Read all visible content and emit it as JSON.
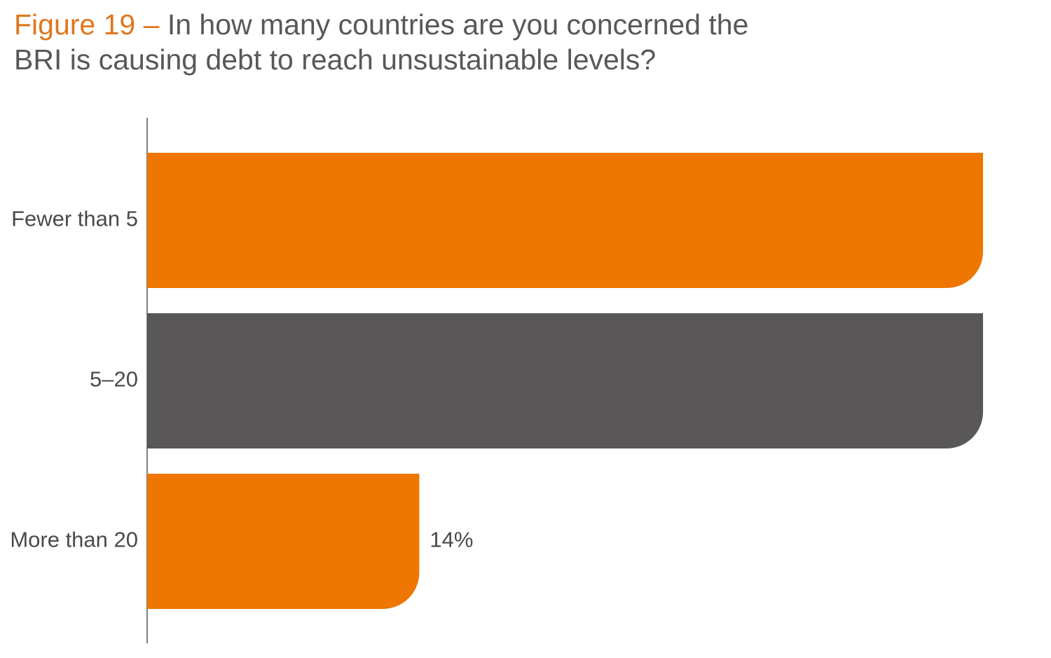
{
  "chart_data": {
    "type": "hbar",
    "figure_label": "Figure 19 –",
    "title": "In how many countries are you concerned the BRI is causing debt to reach unsustainable levels?",
    "categories": [
      "Fewer than 5",
      "5–20",
      "More than 20"
    ],
    "values": [
      43,
      43,
      14
    ],
    "value_labels": [
      null,
      null,
      "14%"
    ],
    "colors": [
      "#ee7601",
      "#595758",
      "#ee7601"
    ]
  }
}
